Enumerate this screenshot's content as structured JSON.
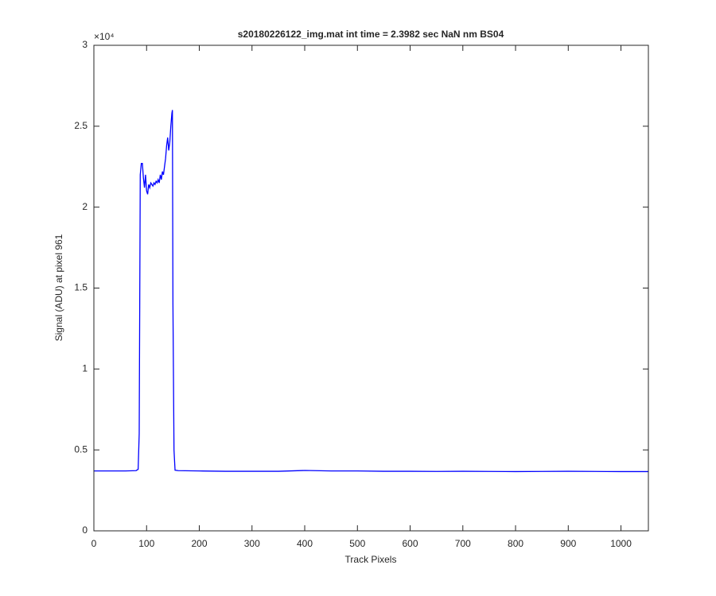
{
  "chart_data": {
    "type": "line",
    "title": "s20180226122_img.mat int time = 2.3982 sec  NaN nm BS04",
    "x_label": "Track Pixels",
    "y_label": "Signal (ADU) at pixel 961",
    "y_multiplier": "×10⁴",
    "xlim": [
      0,
      1052
    ],
    "ylim": [
      0,
      3
    ],
    "xticks": [
      0,
      100,
      200,
      300,
      400,
      500,
      600,
      700,
      800,
      900,
      1000
    ],
    "yticks": [
      0,
      0.5,
      1,
      1.5,
      2,
      2.5,
      3
    ],
    "box": true,
    "series": [
      {
        "color": "#0000ff",
        "x": [
          0,
          20,
          40,
          60,
          80,
          84,
          86,
          88,
          90,
          92,
          94,
          96,
          98,
          100,
          102,
          104,
          106,
          108,
          110,
          112,
          114,
          116,
          118,
          120,
          122,
          124,
          126,
          128,
          130,
          132,
          134,
          136,
          138,
          140,
          142,
          144,
          146,
          148,
          149,
          150,
          152,
          154,
          160,
          200,
          250,
          300,
          350,
          400,
          450,
          500,
          550,
          600,
          650,
          700,
          750,
          800,
          850,
          900,
          950,
          1000,
          1052
        ],
        "values": [
          0.37,
          0.37,
          0.37,
          0.37,
          0.372,
          0.38,
          0.6,
          2.2,
          2.27,
          2.27,
          2.18,
          2.12,
          2.2,
          2.1,
          2.08,
          2.14,
          2.12,
          2.15,
          2.14,
          2.13,
          2.15,
          2.14,
          2.16,
          2.15,
          2.17,
          2.15,
          2.2,
          2.17,
          2.22,
          2.2,
          2.25,
          2.3,
          2.38,
          2.43,
          2.35,
          2.4,
          2.5,
          2.58,
          2.6,
          1.4,
          0.5,
          0.375,
          0.372,
          0.37,
          0.368,
          0.368,
          0.368,
          0.373,
          0.37,
          0.37,
          0.368,
          0.368,
          0.367,
          0.368,
          0.367,
          0.366,
          0.367,
          0.368,
          0.367,
          0.366,
          0.366
        ]
      }
    ]
  }
}
